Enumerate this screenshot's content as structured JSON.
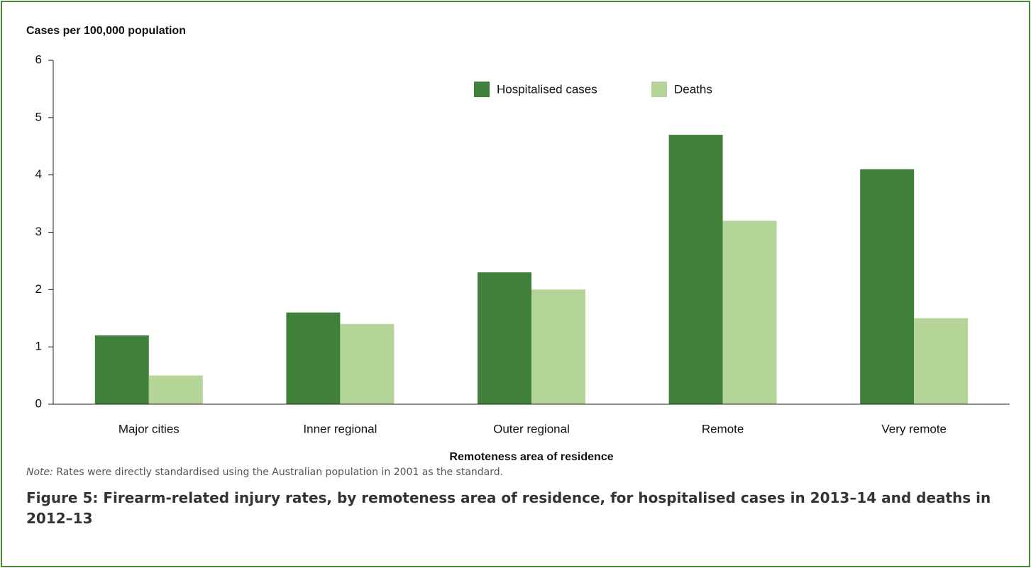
{
  "chart_data": {
    "type": "bar",
    "y_axis_label": "Cases per 100,000 population",
    "x_axis_label": "Remoteness area of residence",
    "categories": [
      "Major cities",
      "Inner regional",
      "Outer regional",
      "Remote",
      "Very remote"
    ],
    "series": [
      {
        "name": "Hospitalised cases",
        "color": "#41803a",
        "values": [
          1.2,
          1.6,
          2.3,
          4.7,
          4.1
        ]
      },
      {
        "name": "Deaths",
        "color": "#b5d598",
        "values": [
          0.5,
          1.4,
          2.0,
          3.2,
          1.5
        ]
      }
    ],
    "ylim": [
      0,
      6
    ],
    "yticks": [
      0,
      1,
      2,
      3,
      4,
      5,
      6
    ],
    "grid": false,
    "note_label": "Note:",
    "note": "Rates were directly standardised using the Australian population in 2001 as the standard.",
    "caption": "Figure 5: Firearm-related injury rates, by remoteness area of residence, for hospitalised cases in 2013–14 and deaths in 2012–13"
  }
}
